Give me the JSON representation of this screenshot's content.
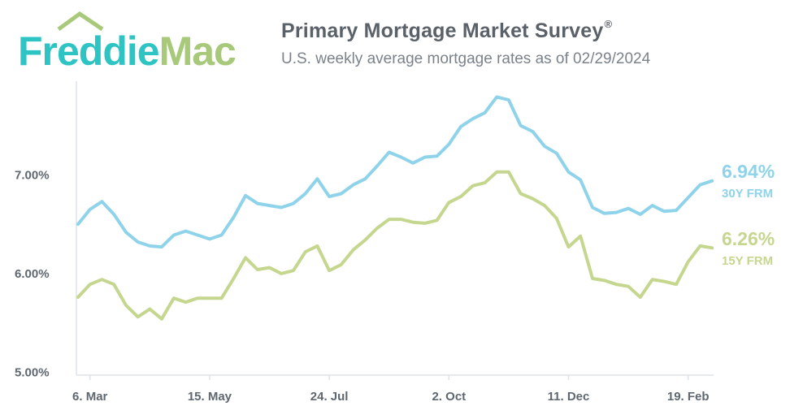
{
  "header": {
    "logo_text": "FreddieMac",
    "logo_word1": "Freddie",
    "logo_word2": "Mac",
    "title": "Primary Mortgage Market Survey",
    "title_mark": "®",
    "subtitle": "U.S. weekly average mortgage rates as of 02/29/2024"
  },
  "colors": {
    "frm30": "#8fd3ea",
    "frm15": "#c5d68f",
    "logo_teal": "#2ec4c4",
    "logo_green": "#a8c97a",
    "axis": "#dde3e8"
  },
  "chart_data": {
    "type": "line",
    "title": "Primary Mortgage Market Survey",
    "subtitle": "U.S. weekly average mortgage rates as of 02/29/2024",
    "y_tick_labels": [
      "7.00%",
      "6.00%",
      "5.00%"
    ],
    "y_ticks": [
      7.0,
      6.0,
      5.0
    ],
    "ylim": [
      4.97,
      7.95
    ],
    "x_tick_labels": [
      "6. Mar",
      "15. May",
      "24. Jul",
      "2. Oct",
      "11. Dec",
      "19. Feb"
    ],
    "x_tick_index": [
      1,
      11,
      21,
      31,
      41,
      51
    ],
    "grid": false,
    "series": [
      {
        "name": "30Y FRM",
        "end_label": "6.94%",
        "values": [
          6.5,
          6.65,
          6.73,
          6.6,
          6.42,
          6.32,
          6.28,
          6.27,
          6.39,
          6.43,
          6.39,
          6.35,
          6.39,
          6.57,
          6.79,
          6.71,
          6.69,
          6.67,
          6.71,
          6.81,
          6.96,
          6.78,
          6.81,
          6.9,
          6.96,
          7.09,
          7.23,
          7.18,
          7.12,
          7.18,
          7.19,
          7.31,
          7.49,
          7.57,
          7.63,
          7.79,
          7.76,
          7.5,
          7.44,
          7.29,
          7.22,
          7.03,
          6.95,
          6.67,
          6.61,
          6.62,
          6.66,
          6.6,
          6.69,
          6.63,
          6.64,
          6.77,
          6.9,
          6.94
        ]
      },
      {
        "name": "15Y FRM",
        "end_label": "6.26%",
        "values": [
          5.76,
          5.89,
          5.94,
          5.89,
          5.68,
          5.56,
          5.64,
          5.54,
          5.75,
          5.71,
          5.75,
          5.75,
          5.75,
          5.95,
          6.16,
          6.04,
          6.06,
          6.0,
          6.03,
          6.22,
          6.28,
          6.03,
          6.09,
          6.24,
          6.34,
          6.46,
          6.55,
          6.55,
          6.52,
          6.51,
          6.54,
          6.72,
          6.78,
          6.89,
          6.92,
          7.03,
          7.03,
          6.81,
          6.76,
          6.69,
          6.56,
          6.27,
          6.38,
          5.95,
          5.93,
          5.89,
          5.87,
          5.76,
          5.94,
          5.92,
          5.89,
          6.12,
          6.28,
          6.26
        ]
      }
    ]
  }
}
